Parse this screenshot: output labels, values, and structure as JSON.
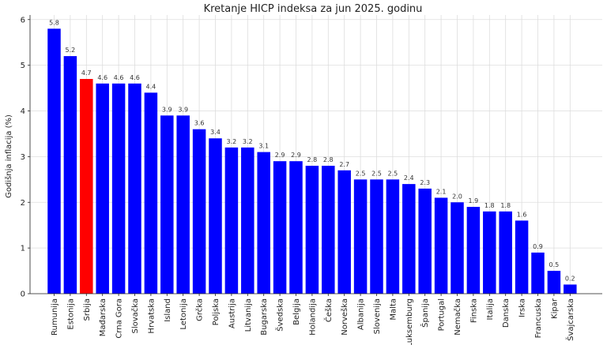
{
  "chart_data": {
    "type": "bar",
    "title": "Kretanje HICP indeksa za jun 2025. godinu",
    "xlabel": "",
    "ylabel": "Godišnja inflacija (%)",
    "ylim": [
      0,
      6.1
    ],
    "yticks": [
      0,
      1,
      2,
      3,
      4,
      5,
      6
    ],
    "grid": true,
    "categories": [
      "Rumunija",
      "Estonija",
      "Srbija",
      "Mađarska",
      "Crna Gora",
      "Slovačka",
      "Hrvatska",
      "Island",
      "Letonija",
      "Grčka",
      "Poljska",
      "Austrija",
      "Litvanija",
      "Bugarska",
      "Švedska",
      "Belgija",
      "Holandija",
      "Češka",
      "Norveška",
      "Albanija",
      "Slovenija",
      "Malta",
      "Luksemburg",
      "Španija",
      "Portugal",
      "Nemačka",
      "Finska",
      "Italija",
      "Danska",
      "Irska",
      "Francuska",
      "Kipar",
      "Švajcarska"
    ],
    "values": [
      5.8,
      5.2,
      4.7,
      4.6,
      4.6,
      4.6,
      4.4,
      3.9,
      3.9,
      3.6,
      3.4,
      3.2,
      3.2,
      3.1,
      2.9,
      2.9,
      2.8,
      2.8,
      2.7,
      2.5,
      2.5,
      2.5,
      2.4,
      2.3,
      2.1,
      2.0,
      1.9,
      1.8,
      1.8,
      1.6,
      0.9,
      0.5,
      0.2
    ],
    "value_labels": [
      "5.8",
      "5.2",
      "4.7",
      "4.6",
      "4.6",
      "4.6",
      "4.4",
      "3.9",
      "3.9",
      "3.6",
      "3.4",
      "3.2",
      "3.2",
      "3.1",
      "2.9",
      "2.9",
      "2.8",
      "2.8",
      "2.7",
      "2.5",
      "2.5",
      "2.5",
      "2.4",
      "2.3",
      "2.1",
      "2.0",
      "1.9",
      "1.8",
      "1.8",
      "1.6",
      "0.9",
      "0.5",
      "0.2"
    ],
    "colors": {
      "default": "#0000ff",
      "highlight": "#ff0000",
      "highlight_category": "Srbija",
      "grid": "#dddddd",
      "axis": "#222222"
    }
  }
}
